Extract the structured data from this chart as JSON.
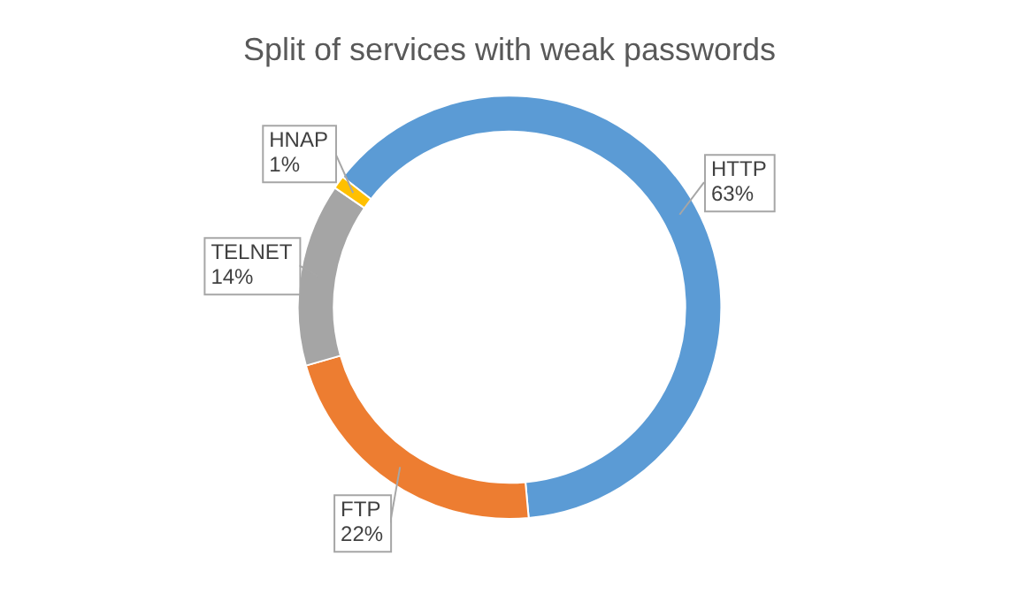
{
  "chart_data": {
    "type": "donut",
    "title": "Split of services with weak passwords",
    "categories": [
      "HTTP",
      "FTP",
      "TELNET",
      "HNAP"
    ],
    "values": [
      63,
      22,
      14,
      1
    ],
    "colors": [
      "#5b9bd5",
      "#ed7d31",
      "#a5a5a5",
      "#ffc000"
    ],
    "value_labels": [
      "63%",
      "22%",
      "14%",
      "1%"
    ],
    "legend": false
  }
}
